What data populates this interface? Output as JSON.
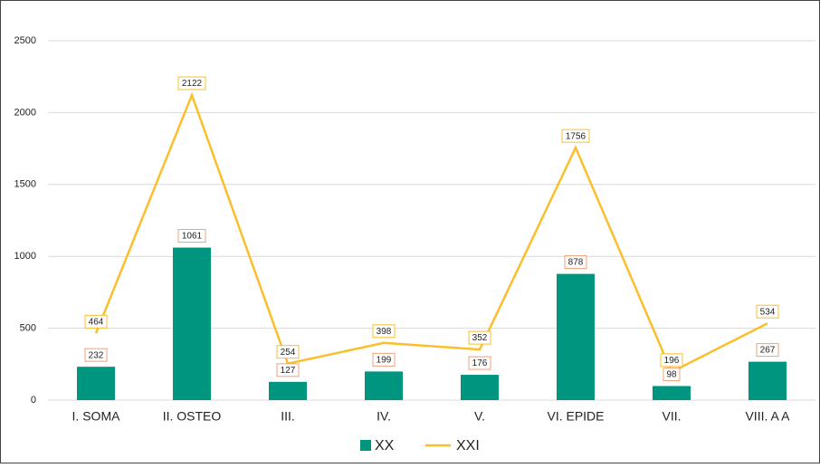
{
  "chart_data": {
    "type": "bar",
    "categories": [
      "I. SOMA",
      "II. OSTEO",
      "III.",
      "IV.",
      "V.",
      "VI. EPIDE",
      "VII.",
      "VIII. A A"
    ],
    "series": [
      {
        "name": "XX",
        "type": "bar",
        "color": "#00957f",
        "label_border": "#f4a07a",
        "values": [
          232,
          1061,
          127,
          199,
          176,
          878,
          98,
          267
        ]
      },
      {
        "name": "XXI",
        "type": "line",
        "color": "#fbbf2c",
        "label_border": "#fbbf2c",
        "values": [
          464,
          2122,
          254,
          398,
          352,
          1756,
          196,
          534
        ]
      }
    ],
    "ylim": [
      0,
      2500
    ],
    "yticks": [
      0,
      500,
      1000,
      1500,
      2000,
      2500
    ],
    "grid": true,
    "legend": "bottom"
  }
}
